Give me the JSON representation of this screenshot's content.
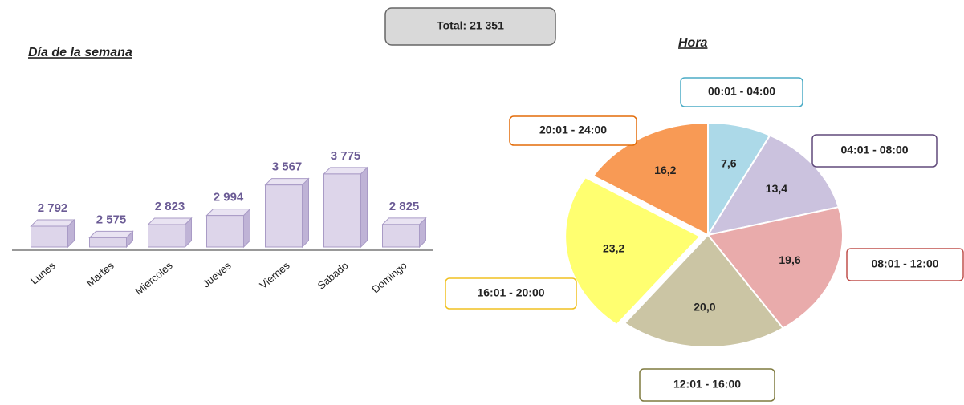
{
  "total": "Total: 21 351",
  "chart_data": [
    {
      "type": "bar",
      "title": "Día de la semana",
      "categories": [
        "Lunes",
        "Martes",
        "Miercoles",
        "Jueves",
        "Viernes",
        "Sabado",
        "Domingo"
      ],
      "values": [
        2792,
        2575,
        2823,
        2994,
        3567,
        3775,
        2825
      ],
      "value_labels": [
        "2 792",
        "2 575",
        "2 823",
        "2 994",
        "3 567",
        "3 775",
        "2 825"
      ],
      "color": "#ddd5ea",
      "ylim": [
        2400,
        4000
      ]
    },
    {
      "type": "pie",
      "title": "Hora",
      "categories": [
        "00:01 - 04:00",
        "04:01 - 08:00",
        "08:01 - 12:00",
        "12:01 - 16:00",
        "16:01 - 20:00",
        "20:01 - 24:00"
      ],
      "values": [
        7.6,
        13.4,
        19.6,
        20.0,
        23.2,
        16.2
      ],
      "value_labels": [
        "7,6",
        "13,4",
        "19,6",
        "20,0",
        "23,2",
        "16,2"
      ],
      "colors": [
        "#acd9e8",
        "#cbc2de",
        "#e9abab",
        "#cbc5a4",
        "#ffff70",
        "#f89a55"
      ],
      "label_border_colors": [
        "#4bacc6",
        "#604a7b",
        "#c0504d",
        "#7f7a3f",
        "#f0c020",
        "#e36c09"
      ]
    }
  ]
}
